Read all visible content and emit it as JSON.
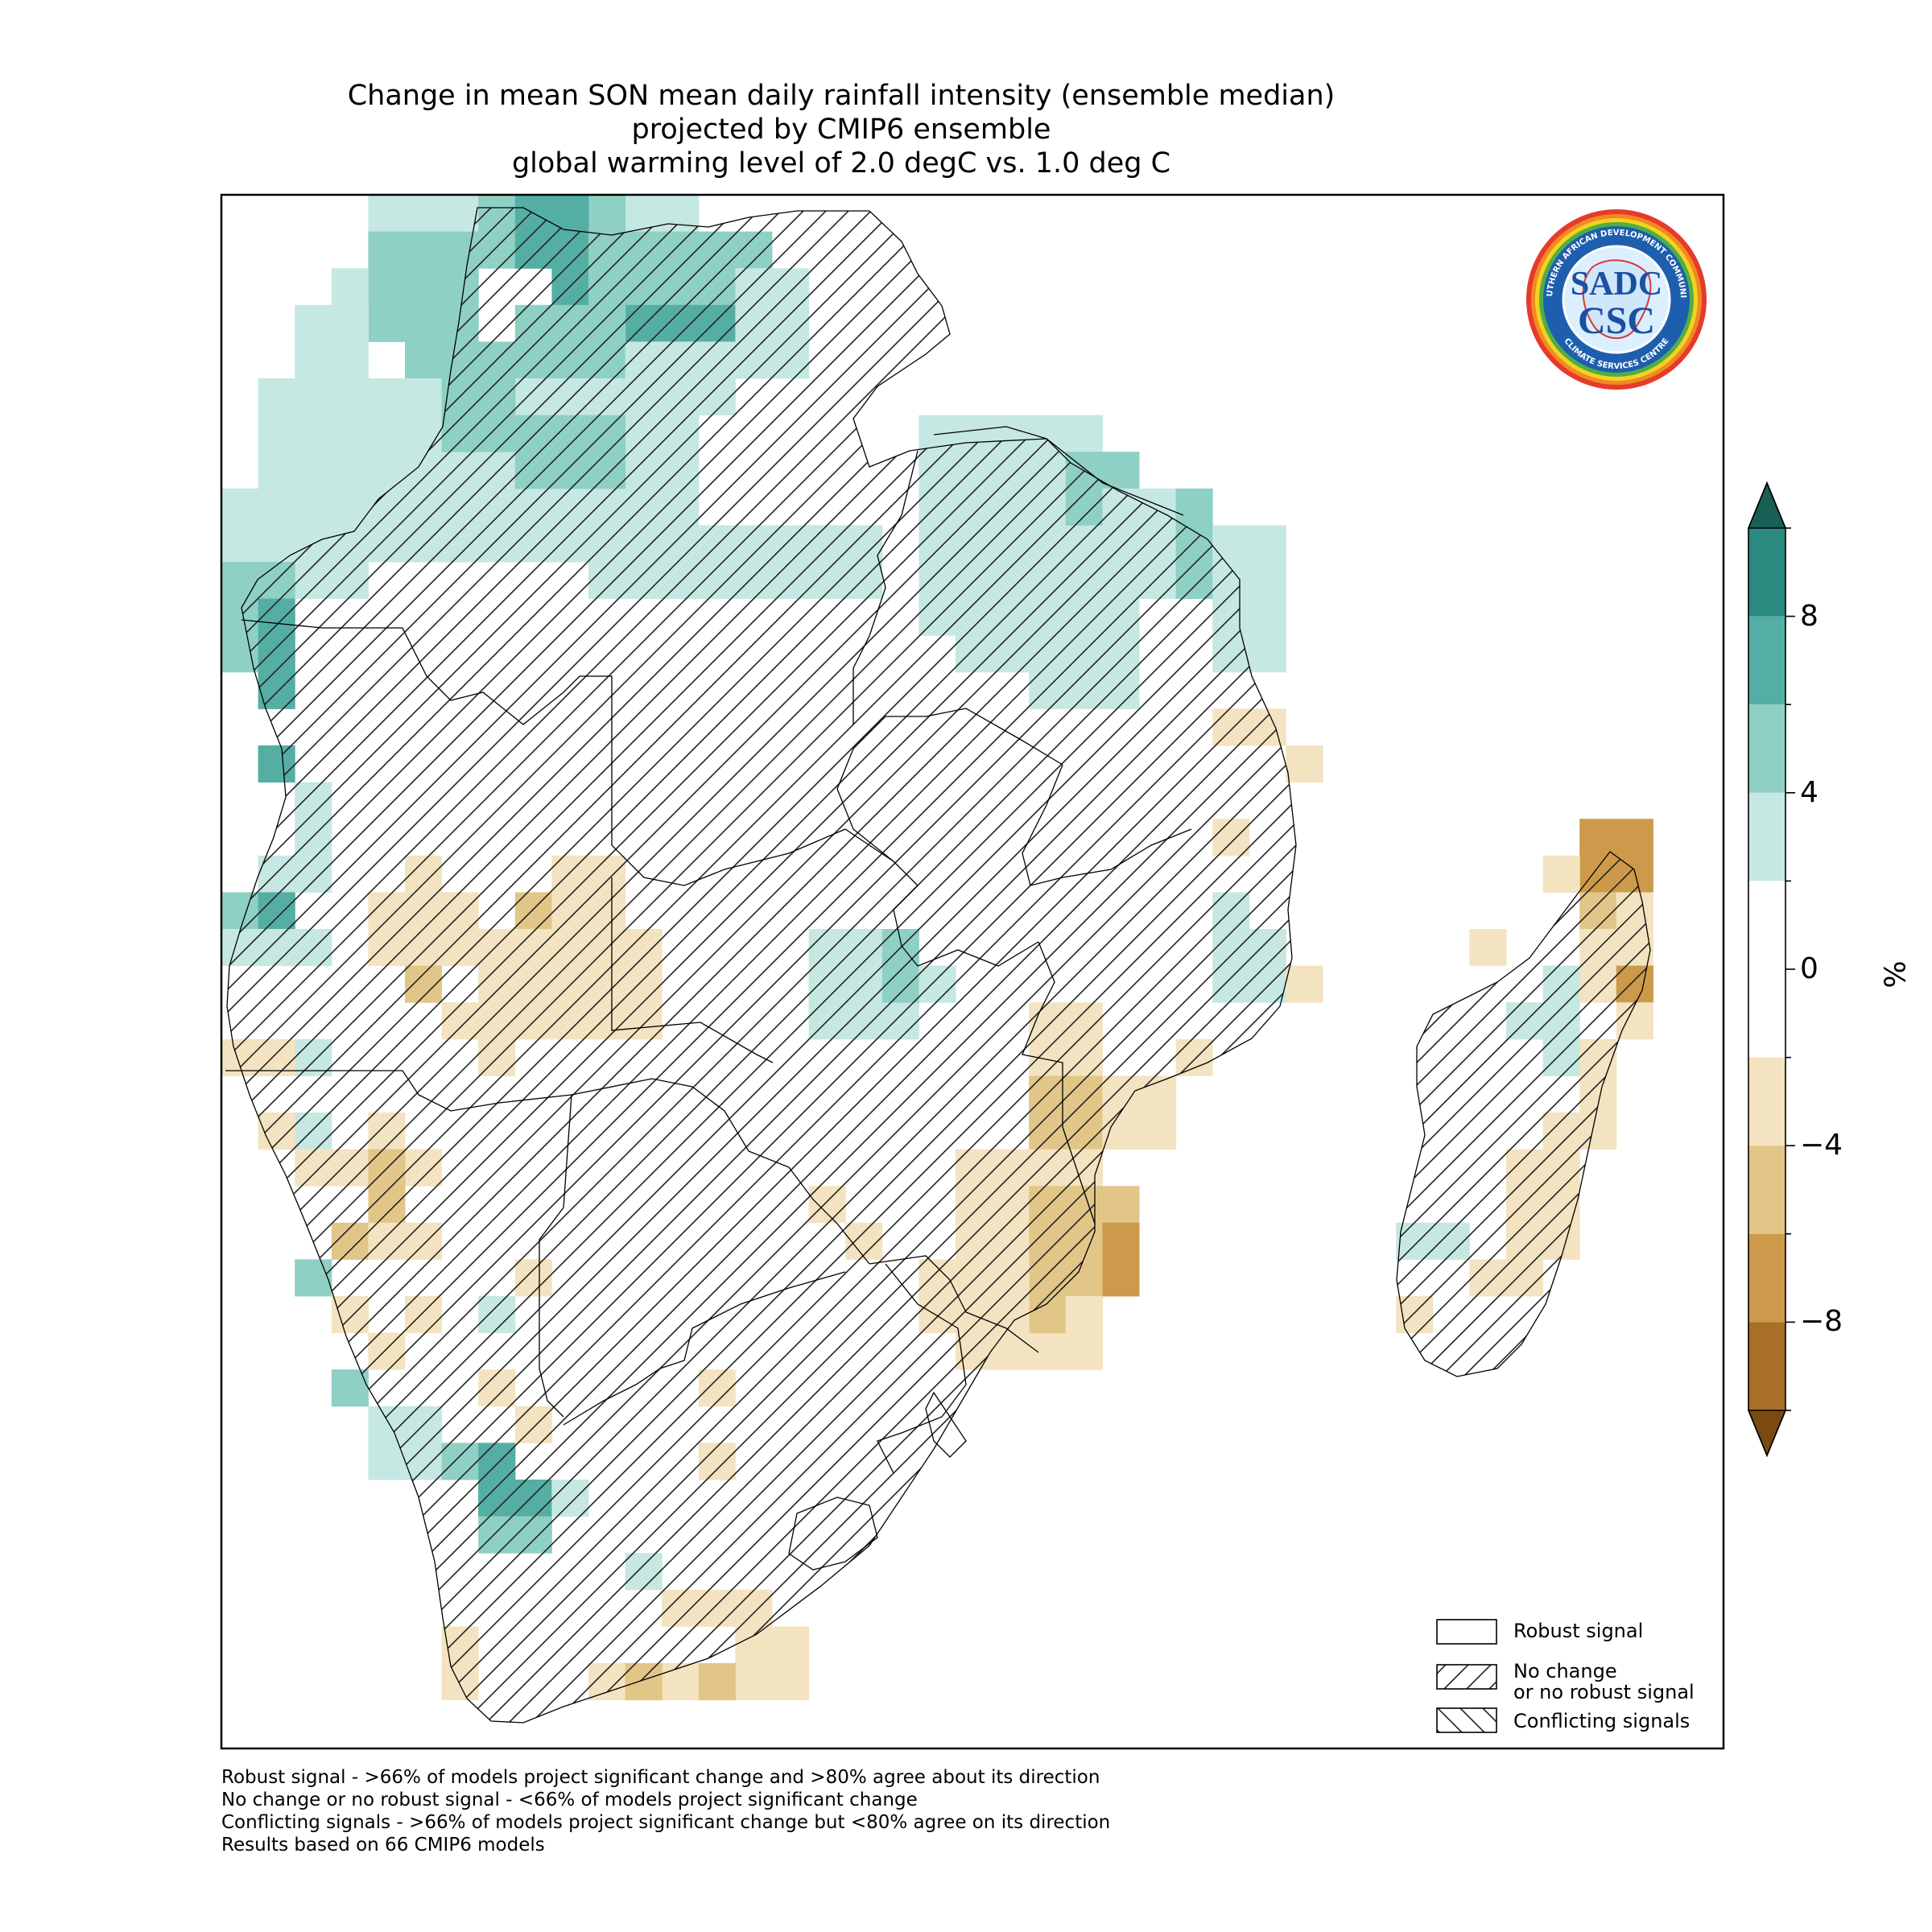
{
  "title": {
    "line1": "Change in mean SON mean daily rainfall intensity (ensemble median)",
    "line2": "projected by CMIP6 ensemble",
    "line3": "global warming level of 2.0 degC vs. 1.0 deg C"
  },
  "logo": {
    "outer_text_top": "SOUTHERN AFRICAN DEVELOPMENT COMMUNITY",
    "outer_text_bottom": "CLIMATE SERVICES CENTRE",
    "abbr_top": "SADC",
    "abbr_bottom": "CSC"
  },
  "legend": {
    "robust": "Robust signal",
    "no_change_1": "No change",
    "no_change_2": "or no robust signal",
    "conflicting": "Conflicting signals"
  },
  "footnotes": {
    "line1": "Robust signal - >66% of models project significant change and >80% agree about its direction",
    "line2": "No change or no robust signal - <66% of models project significant change",
    "line3": "Conflicting signals - >66% of models project significant change but <80% agree on its direction",
    "line4": "Results based on 66 CMIP6 models"
  },
  "colorbar": {
    "unit": "%",
    "tick_labels": [
      "8",
      "4",
      "0",
      "−4",
      "−8"
    ],
    "tick_values": [
      8,
      4,
      0,
      -4,
      -8
    ],
    "range": [
      -10,
      10
    ],
    "bins": [
      {
        "from": 8,
        "to": 10,
        "color": "#2a8a80"
      },
      {
        "from": 6,
        "to": 8,
        "color": "#55aea3"
      },
      {
        "from": 4,
        "to": 6,
        "color": "#8fd0c4"
      },
      {
        "from": 2,
        "to": 4,
        "color": "#c6e8e2"
      },
      {
        "from": -2,
        "to": 2,
        "color": "#ffffff"
      },
      {
        "from": -4,
        "to": -2,
        "color": "#f4e3c0"
      },
      {
        "from": -6,
        "to": -4,
        "color": "#e2c688"
      },
      {
        "from": -8,
        "to": -6,
        "color": "#cc9a4a"
      },
      {
        "from": -10,
        "to": -8,
        "color": "#a86f26"
      }
    ],
    "extend_max_color": "#1a5f56",
    "extend_min_color": "#7a4a12"
  }
}
